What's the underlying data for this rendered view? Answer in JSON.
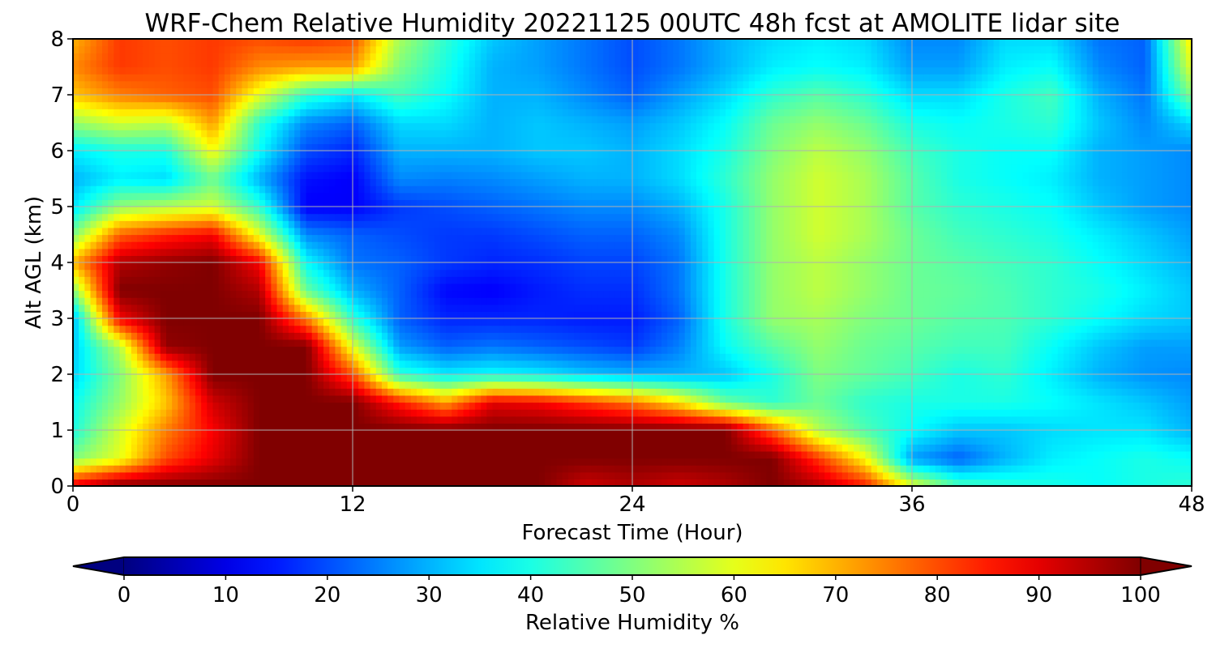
{
  "chart_data": {
    "type": "heatmap",
    "title": "WRF-Chem Relative Humidity 20221125 00UTC 48h fcst at AMOLITE lidar site",
    "xlabel": "Forecast Time (Hour)",
    "ylabel": "Alt AGL (km)",
    "xlim": [
      0,
      48
    ],
    "ylim": [
      0,
      8
    ],
    "xticks": [
      0,
      12,
      24,
      36,
      48
    ],
    "yticks": [
      0,
      1,
      2,
      3,
      4,
      5,
      6,
      7,
      8
    ],
    "grid": true,
    "colorbar": {
      "label": "Relative Humidity %",
      "ticks": [
        0,
        10,
        20,
        30,
        40,
        50,
        60,
        70,
        80,
        90,
        100
      ],
      "range": [
        0,
        100
      ],
      "extend": "both",
      "colormap": "jet"
    },
    "x": [
      0,
      2,
      4,
      6,
      8,
      10,
      12,
      14,
      16,
      18,
      20,
      22,
      24,
      26,
      28,
      30,
      32,
      34,
      36,
      38,
      40,
      42,
      44,
      46,
      48
    ],
    "y": [
      0,
      0.5,
      1,
      1.5,
      2,
      2.5,
      3,
      3.5,
      4,
      4.5,
      5,
      5.5,
      6,
      6.5,
      7,
      7.5,
      8
    ],
    "z": [
      [
        90,
        100,
        100,
        100,
        100,
        100,
        100,
        100,
        100,
        100,
        100,
        92,
        95,
        92,
        95,
        100,
        95,
        85,
        60,
        45,
        42,
        40,
        38,
        40,
        42
      ],
      [
        50,
        60,
        80,
        90,
        100,
        100,
        100,
        100,
        100,
        100,
        100,
        100,
        100,
        100,
        100,
        100,
        82,
        62,
        28,
        22,
        30,
        36,
        38,
        40,
        38
      ],
      [
        40,
        58,
        75,
        88,
        100,
        100,
        100,
        100,
        100,
        100,
        100,
        100,
        100,
        100,
        100,
        78,
        55,
        45,
        38,
        32,
        32,
        34,
        35,
        35,
        30
      ],
      [
        38,
        52,
        68,
        92,
        100,
        100,
        100,
        85,
        72,
        90,
        88,
        82,
        76,
        65,
        48,
        42,
        48,
        42,
        40,
        40,
        40,
        38,
        35,
        32,
        28
      ],
      [
        33,
        50,
        72,
        100,
        100,
        100,
        80,
        42,
        36,
        38,
        36,
        32,
        30,
        30,
        32,
        40,
        50,
        47,
        44,
        40,
        42,
        36,
        30,
        27,
        26
      ],
      [
        32,
        55,
        98,
        100,
        100,
        100,
        60,
        28,
        22,
        24,
        22,
        20,
        18,
        25,
        38,
        46,
        52,
        48,
        46,
        44,
        44,
        38,
        32,
        28,
        28
      ],
      [
        30,
        88,
        100,
        100,
        100,
        75,
        42,
        22,
        16,
        16,
        16,
        15,
        15,
        22,
        40,
        52,
        54,
        50,
        48,
        46,
        45,
        42,
        38,
        34,
        32
      ],
      [
        50,
        100,
        100,
        100,
        95,
        48,
        30,
        22,
        13,
        12,
        15,
        17,
        17,
        24,
        40,
        52,
        56,
        52,
        48,
        47,
        45,
        42,
        40,
        36,
        32
      ],
      [
        70,
        95,
        98,
        100,
        88,
        38,
        24,
        22,
        18,
        16,
        17,
        19,
        19,
        24,
        40,
        52,
        56,
        52,
        48,
        46,
        44,
        42,
        38,
        34,
        30
      ],
      [
        50,
        78,
        84,
        88,
        60,
        26,
        22,
        20,
        18,
        18,
        20,
        22,
        22,
        26,
        40,
        52,
        58,
        54,
        48,
        44,
        42,
        40,
        36,
        32,
        28
      ],
      [
        35,
        52,
        55,
        58,
        42,
        12,
        12,
        18,
        20,
        22,
        24,
        26,
        26,
        30,
        40,
        52,
        58,
        54,
        46,
        42,
        40,
        38,
        32,
        28,
        26
      ],
      [
        30,
        36,
        34,
        48,
        30,
        14,
        12,
        26,
        25,
        26,
        28,
        30,
        30,
        34,
        42,
        52,
        58,
        54,
        46,
        40,
        38,
        36,
        30,
        28,
        26
      ],
      [
        36,
        40,
        40,
        62,
        38,
        20,
        16,
        30,
        30,
        30,
        32,
        32,
        30,
        34,
        40,
        50,
        56,
        52,
        44,
        40,
        38,
        38,
        30,
        28,
        26
      ],
      [
        52,
        58,
        56,
        72,
        42,
        26,
        22,
        34,
        34,
        30,
        32,
        30,
        28,
        32,
        38,
        48,
        52,
        48,
        40,
        38,
        40,
        42,
        32,
        26,
        34
      ],
      [
        68,
        75,
        78,
        80,
        60,
        42,
        36,
        44,
        38,
        30,
        30,
        26,
        22,
        28,
        34,
        42,
        46,
        42,
        34,
        34,
        40,
        44,
        30,
        24,
        50
      ],
      [
        74,
        82,
        80,
        82,
        74,
        72,
        72,
        50,
        40,
        30,
        28,
        24,
        20,
        24,
        30,
        36,
        38,
        36,
        28,
        28,
        36,
        38,
        26,
        22,
        60
      ],
      [
        70,
        82,
        80,
        82,
        80,
        82,
        80,
        54,
        42,
        32,
        28,
        24,
        20,
        24,
        30,
        34,
        36,
        34,
        26,
        26,
        34,
        34,
        24,
        22,
        65
      ]
    ]
  }
}
